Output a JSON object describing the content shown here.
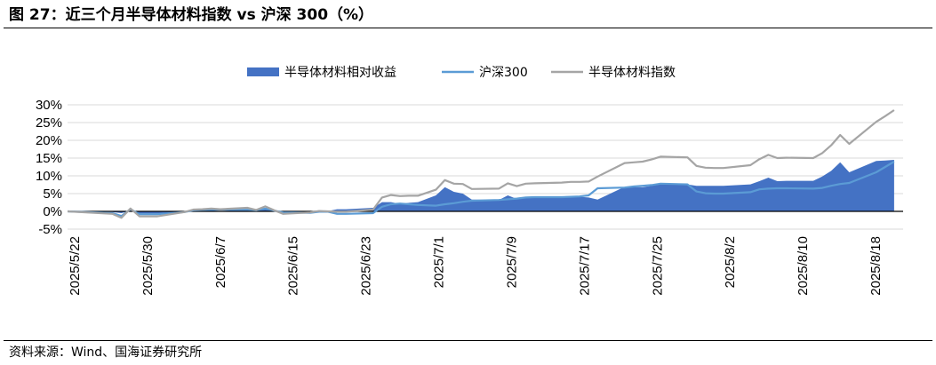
{
  "title": "图 27：近三个月半导体材料指数 vs 沪深 300（%）",
  "source": "资料来源：Wind、国海证券研究所",
  "chart_data": {
    "type": "area",
    "ylim": [
      -5,
      30
    ],
    "yticks": [
      "-5%",
      "0%",
      "5%",
      "10%",
      "15%",
      "20%",
      "25%",
      "30%"
    ],
    "ytick_values": [
      -5,
      0,
      5,
      10,
      15,
      20,
      25,
      30
    ],
    "xtick_labels": [
      "2025/5/22",
      "2025/5/30",
      "2025/6/7",
      "2025/6/15",
      "2025/6/23",
      "2025/7/1",
      "2025/7/9",
      "2025/7/17",
      "2025/7/25",
      "2025/8/2",
      "2025/8/10",
      "2025/8/18"
    ],
    "xlim_days": [
      0,
      93
    ],
    "x_days": [
      0,
      5,
      6,
      7,
      8,
      9,
      10,
      13,
      14,
      15,
      16,
      17,
      20,
      21,
      22,
      23,
      24,
      27,
      28,
      29,
      30,
      31,
      34,
      35,
      36,
      37,
      38,
      39,
      41,
      42,
      43,
      44,
      45,
      48,
      49,
      50,
      51,
      52,
      55,
      56,
      57,
      58,
      59,
      62,
      63,
      64,
      65,
      66,
      69,
      70,
      71,
      72,
      73,
      76,
      77,
      78,
      79,
      80,
      83,
      84,
      85,
      86,
      87,
      90,
      91,
      92
    ],
    "grid": true,
    "legend_position": "top-center",
    "series": [
      {
        "name": "半导体材料相对收益",
        "type": "area",
        "color": "#4472C4",
        "values": [
          0.0,
          -0.2,
          -0.5,
          0.2,
          -0.6,
          -0.6,
          -0.6,
          0.0,
          0.2,
          0.2,
          0.3,
          0.1,
          0.5,
          0.1,
          0.6,
          0.1,
          -0.4,
          0.1,
          0.2,
          0.1,
          0.6,
          0.6,
          1.0,
          2.6,
          2.6,
          2.1,
          2.4,
          2.6,
          4.5,
          6.8,
          5.5,
          5.0,
          3.3,
          3.2,
          4.5,
          3.5,
          3.9,
          3.9,
          4.1,
          4.2,
          4.1,
          3.9,
          3.3,
          6.9,
          6.8,
          6.8,
          7.2,
          7.6,
          7.6,
          7.2,
          7.2,
          7.2,
          7.2,
          7.6,
          8.5,
          9.5,
          8.5,
          8.6,
          8.6,
          9.8,
          11.4,
          13.8,
          11.0,
          14.2,
          14.3,
          14.5
        ]
      },
      {
        "name": "沪深300",
        "type": "line",
        "color": "#5B9BD5",
        "values": [
          0.0,
          -0.5,
          -1.3,
          0.6,
          -0.8,
          -0.8,
          -0.8,
          -0.2,
          0.3,
          0.4,
          0.5,
          0.5,
          0.5,
          0.3,
          0.8,
          0.2,
          -0.3,
          -0.4,
          -0.1,
          -0.1,
          -0.7,
          -0.7,
          -0.5,
          1.3,
          2.0,
          2.2,
          2.0,
          1.8,
          1.6,
          2.0,
          2.3,
          2.7,
          3.0,
          3.2,
          3.4,
          3.6,
          3.9,
          4.0,
          4.0,
          4.1,
          4.2,
          4.5,
          6.5,
          6.7,
          7.0,
          7.2,
          7.4,
          7.8,
          7.6,
          5.6,
          5.1,
          5.0,
          5.0,
          5.4,
          6.2,
          6.4,
          6.5,
          6.5,
          6.4,
          6.6,
          7.2,
          7.7,
          8.0,
          11.0,
          12.5,
          14.0
        ]
      },
      {
        "name": "半导体材料指数",
        "type": "line",
        "color": "#A5A5A5",
        "values": [
          0.0,
          -0.7,
          -1.8,
          0.8,
          -1.4,
          -1.4,
          -1.4,
          -0.2,
          0.5,
          0.6,
          0.8,
          0.6,
          1.0,
          0.4,
          1.4,
          0.3,
          -0.7,
          -0.3,
          0.1,
          0.0,
          -0.1,
          -0.1,
          0.5,
          3.9,
          4.6,
          4.3,
          4.4,
          4.4,
          6.1,
          8.8,
          7.8,
          7.7,
          6.3,
          6.4,
          7.9,
          7.1,
          7.8,
          7.9,
          8.1,
          8.3,
          8.3,
          8.4,
          9.8,
          13.6,
          13.8,
          14.0,
          14.6,
          15.4,
          15.2,
          12.8,
          12.3,
          12.2,
          12.2,
          13.0,
          14.7,
          15.9,
          15.0,
          15.1,
          15.0,
          16.4,
          18.6,
          21.5,
          19.0,
          25.2,
          26.8,
          28.5
        ]
      }
    ]
  }
}
